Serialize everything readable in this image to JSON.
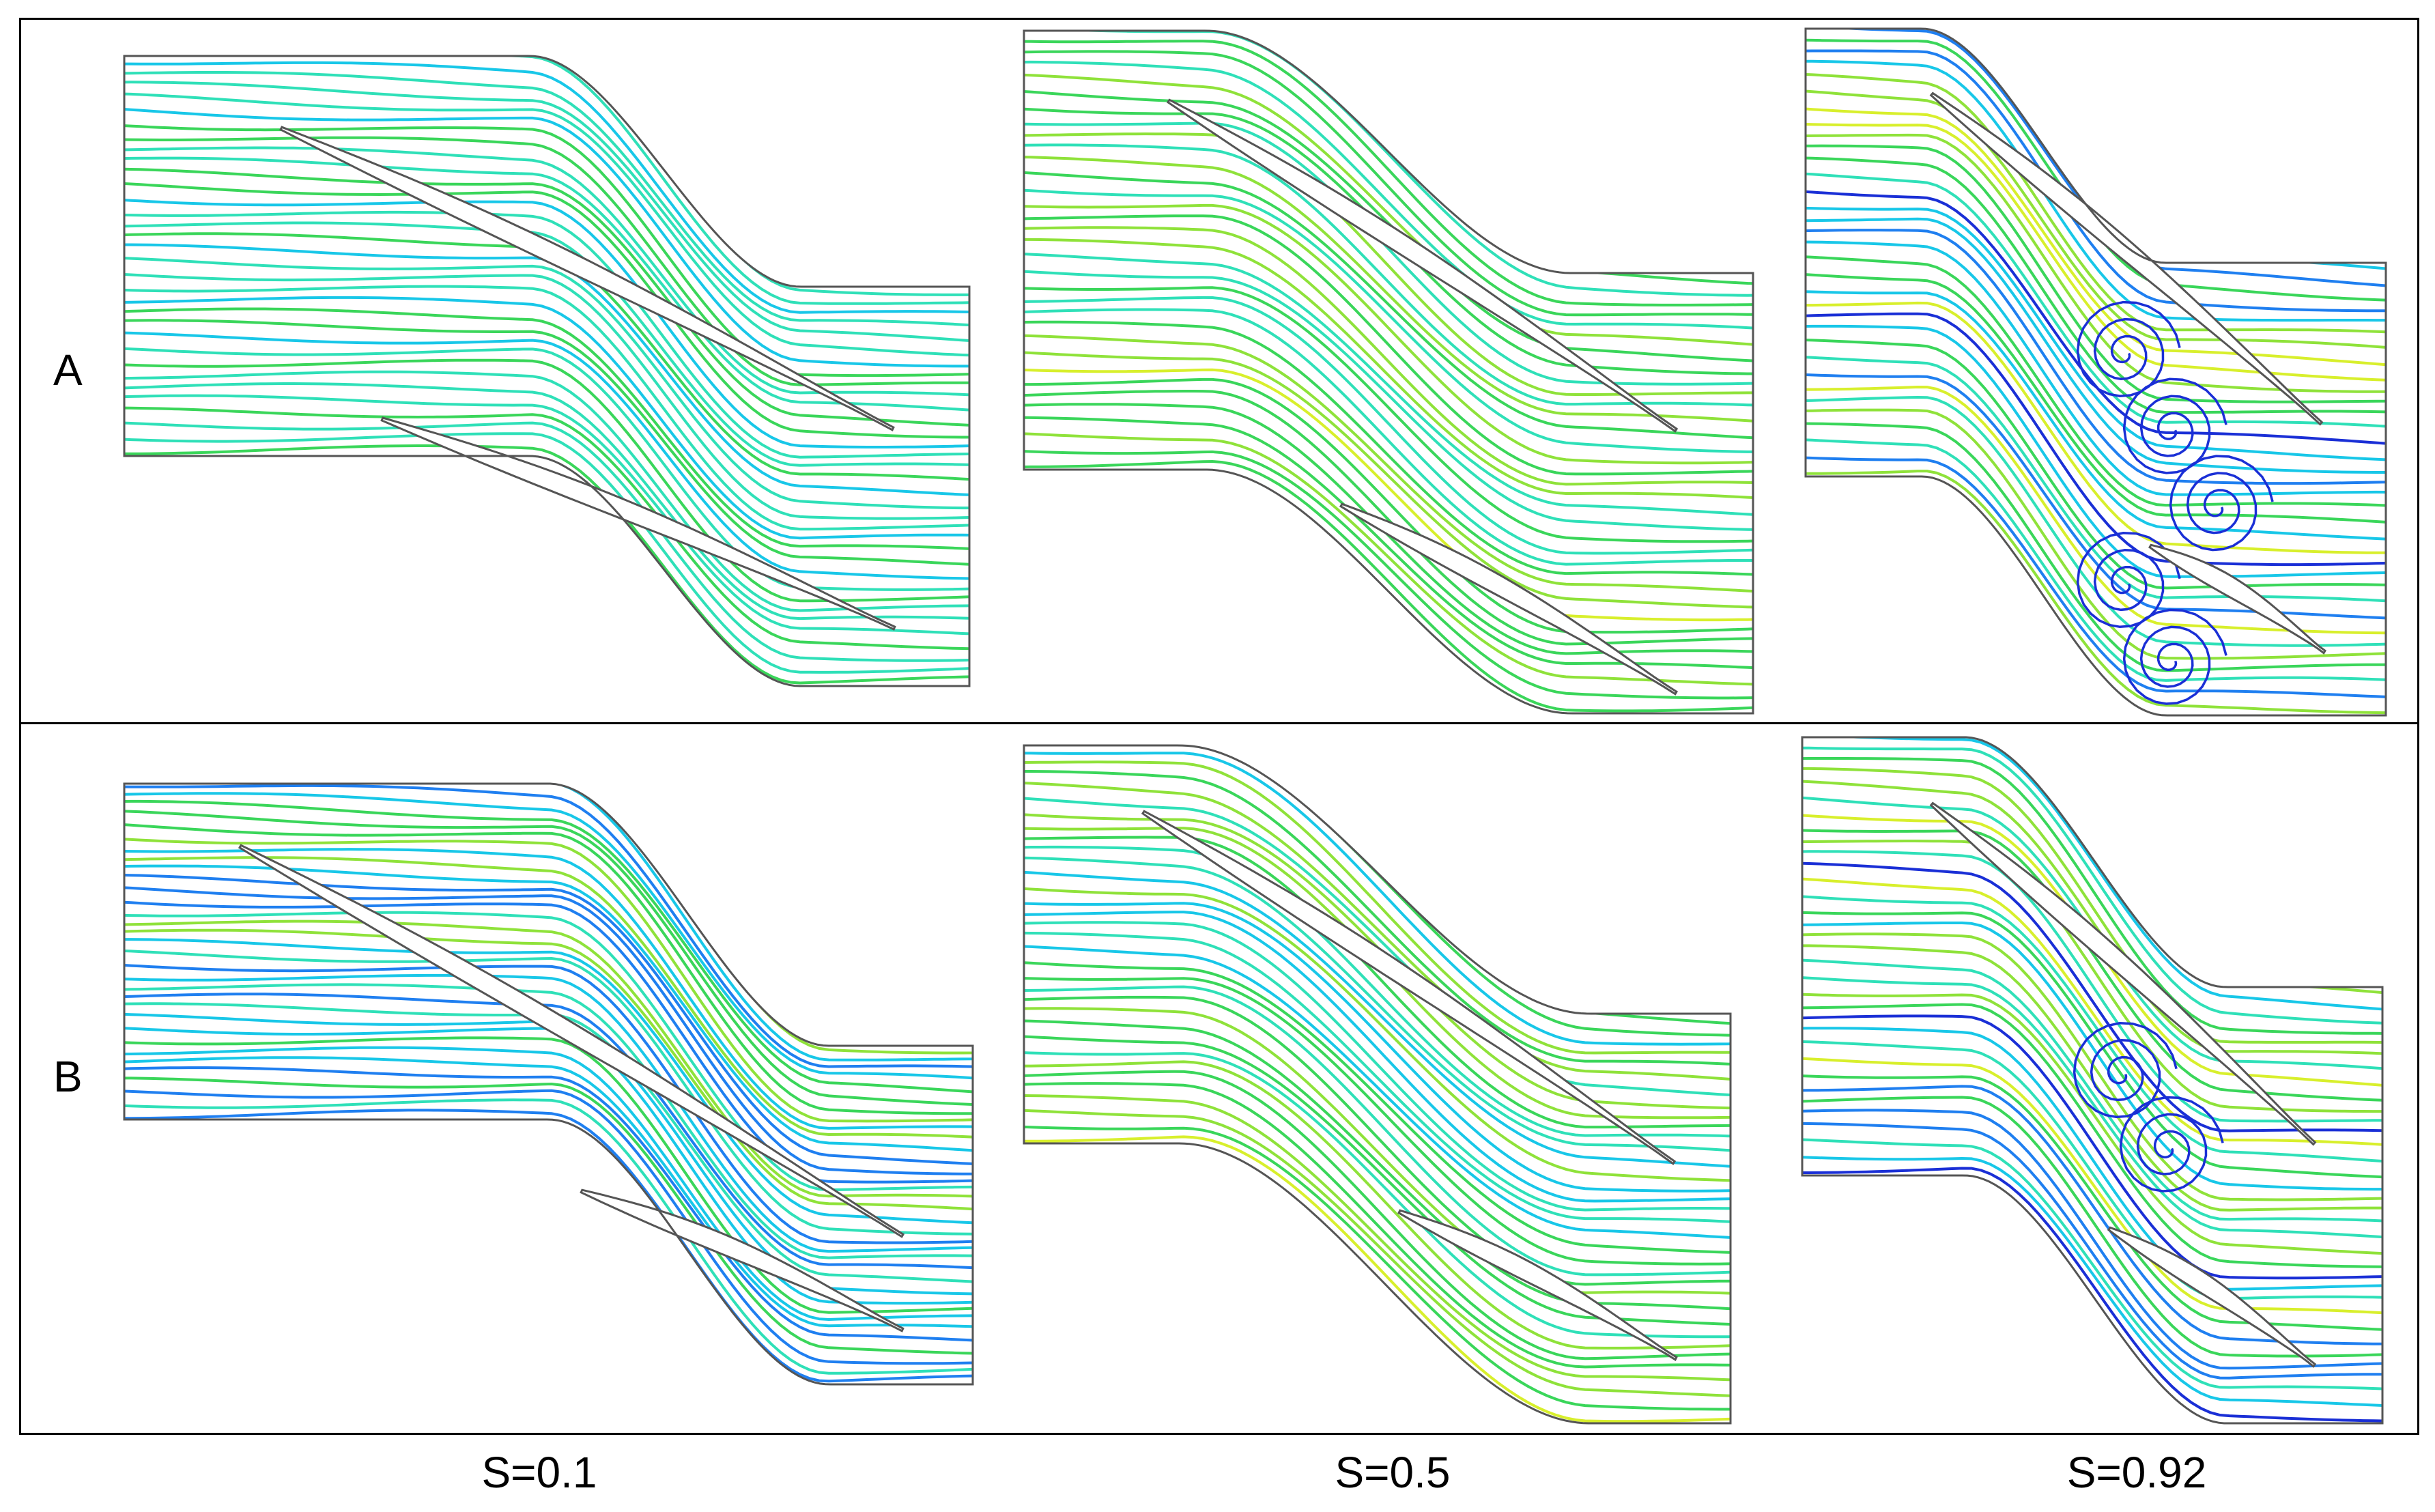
{
  "rows": [
    {
      "label": "A"
    },
    {
      "label": "B"
    }
  ],
  "columns": [
    {
      "label": "S=0.1"
    },
    {
      "label": "S=0.5"
    },
    {
      "label": "S=0.92"
    }
  ],
  "colors": {
    "outline": "#555555",
    "streamline_palette": [
      "#1a2fd6",
      "#1f7ff0",
      "#18c7e8",
      "#2fe0b8",
      "#3ad65a",
      "#8fe23a",
      "#d8ef2c"
    ]
  },
  "panels": [
    {
      "row": 0,
      "col": 0,
      "dominant": [
        0.35,
        0.75
      ],
      "vortices": 0
    },
    {
      "row": 0,
      "col": 1,
      "dominant": [
        0.45,
        0.95
      ],
      "vortices": 0
    },
    {
      "row": 0,
      "col": 2,
      "dominant": [
        0.0,
        1.0
      ],
      "vortices": 5
    },
    {
      "row": 1,
      "col": 0,
      "dominant": [
        0.15,
        0.9
      ],
      "vortices": 0
    },
    {
      "row": 1,
      "col": 1,
      "dominant": [
        0.35,
        0.95
      ],
      "vortices": 0
    },
    {
      "row": 1,
      "col": 2,
      "dominant": [
        0.0,
        1.0
      ],
      "vortices": 2
    }
  ]
}
